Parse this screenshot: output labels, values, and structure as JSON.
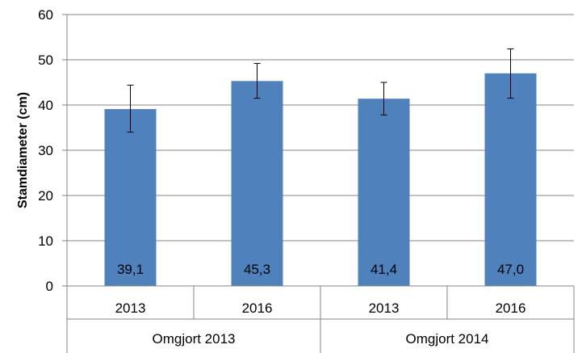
{
  "chart_data": {
    "type": "bar",
    "title": "",
    "xlabel": "",
    "ylabel": "Stamdiameter (cm)",
    "ylim": [
      0,
      60
    ],
    "yticks": [
      0,
      10,
      20,
      30,
      40,
      50,
      60
    ],
    "grid": true,
    "legend": "none",
    "bar_color": "#4F81BD",
    "groups": [
      {
        "name": "Omgjort 2013",
        "categories": [
          "2013",
          "2016"
        ]
      },
      {
        "name": "Omgjort 2014",
        "categories": [
          "2013",
          "2016"
        ]
      }
    ],
    "categories": [
      "2013",
      "2016",
      "2013",
      "2016"
    ],
    "values": [
      39.1,
      45.3,
      41.4,
      47.0
    ],
    "value_labels": [
      "39,1",
      "45,3",
      "41,4",
      "47,0"
    ],
    "error_low": [
      34.0,
      41.5,
      37.8,
      41.5
    ],
    "error_high": [
      44.4,
      49.2,
      45.0,
      52.4
    ]
  }
}
